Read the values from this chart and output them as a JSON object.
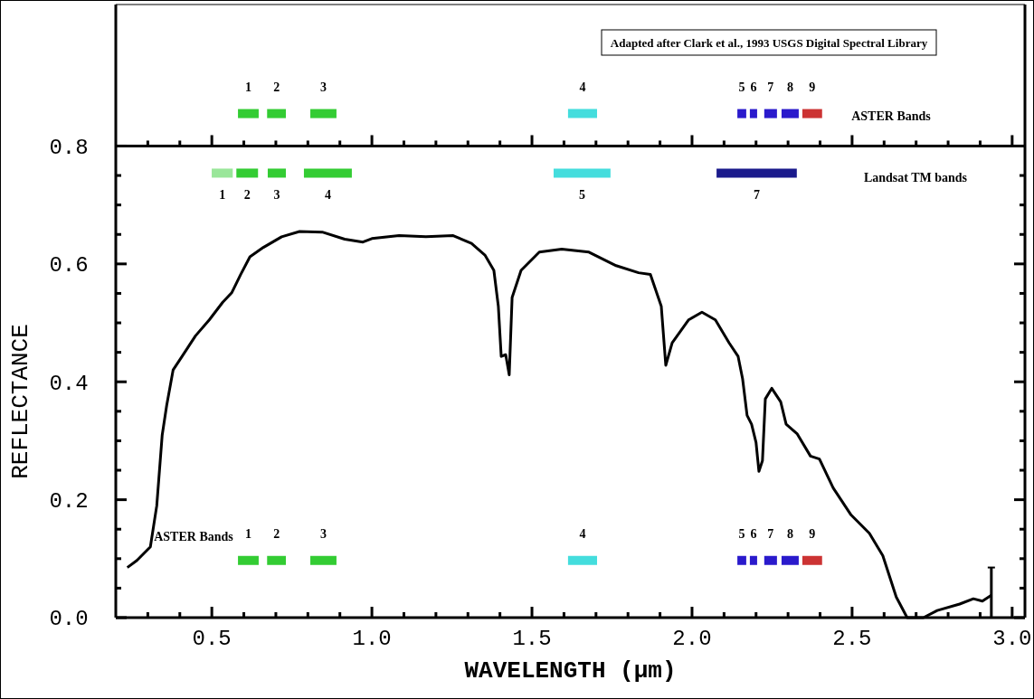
{
  "chart_data": {
    "type": "line",
    "xlabel": "WAVELENGTH (μm)",
    "ylabel": "REFLECTANCE",
    "xlim": [
      0.2,
      3.04
    ],
    "ylim": [
      0,
      1.04
    ],
    "xticks": [
      {
        "value": 0.3,
        "label": null
      },
      {
        "value": 0.4,
        "label": null
      },
      {
        "value": 0.5,
        "label": "0.5"
      },
      {
        "value": 0.6,
        "label": null
      },
      {
        "value": 0.7,
        "label": null
      },
      {
        "value": 0.8,
        "label": null
      },
      {
        "value": 0.9,
        "label": null
      },
      {
        "value": 1.0,
        "label": "1.0"
      },
      {
        "value": 1.1,
        "label": null
      },
      {
        "value": 1.2,
        "label": null
      },
      {
        "value": 1.3,
        "label": null
      },
      {
        "value": 1.4,
        "label": null
      },
      {
        "value": 1.5,
        "label": "1.5"
      },
      {
        "value": 1.6,
        "label": null
      },
      {
        "value": 1.7,
        "label": null
      },
      {
        "value": 1.8,
        "label": null
      },
      {
        "value": 1.9,
        "label": null
      },
      {
        "value": 2.0,
        "label": "2.0"
      },
      {
        "value": 2.1,
        "label": null
      },
      {
        "value": 2.2,
        "label": null
      },
      {
        "value": 2.3,
        "label": null
      },
      {
        "value": 2.4,
        "label": null
      },
      {
        "value": 2.5,
        "label": "2.5"
      },
      {
        "value": 2.6,
        "label": null
      },
      {
        "value": 2.7,
        "label": null
      },
      {
        "value": 2.8,
        "label": null
      },
      {
        "value": 2.9,
        "label": null
      },
      {
        "value": 3.0,
        "label": "3.0"
      }
    ],
    "yticks": [
      {
        "value": 0,
        "label": "0.0"
      },
      {
        "value": 0.05,
        "label": null
      },
      {
        "value": 0.1,
        "label": null
      },
      {
        "value": 0.15,
        "label": null
      },
      {
        "value": 0.2,
        "label": "0.2"
      },
      {
        "value": 0.25,
        "label": null
      },
      {
        "value": 0.3,
        "label": null
      },
      {
        "value": 0.35,
        "label": null
      },
      {
        "value": 0.4,
        "label": "0.4"
      },
      {
        "value": 0.45,
        "label": null
      },
      {
        "value": 0.5,
        "label": null
      },
      {
        "value": 0.55,
        "label": null
      },
      {
        "value": 0.6,
        "label": "0.6"
      },
      {
        "value": 0.65,
        "label": null
      },
      {
        "value": 0.7,
        "label": null
      },
      {
        "value": 0.75,
        "label": null
      },
      {
        "value": 0.8,
        "label": "0.8"
      }
    ],
    "grid": false,
    "marker": "none",
    "line_style": "solid",
    "ref_lines": [
      {
        "axis": "y",
        "value": 0.8,
        "label": null,
        "color": "#000000"
      }
    ],
    "series": [
      {
        "color": "#000000",
        "x": [
          0.236,
          0.266,
          0.308,
          0.328,
          0.345,
          0.359,
          0.379,
          0.407,
          0.449,
          0.492,
          0.534,
          0.562,
          0.59,
          0.619,
          0.661,
          0.718,
          0.774,
          0.845,
          0.915,
          0.972,
          1.0,
          1.085,
          1.169,
          1.254,
          1.311,
          1.353,
          1.381,
          1.395,
          1.404,
          1.418,
          1.429,
          1.438,
          1.466,
          1.523,
          1.593,
          1.678,
          1.763,
          1.833,
          1.87,
          1.904,
          1.918,
          1.938,
          1.989,
          2.031,
          2.073,
          2.116,
          2.144,
          2.158,
          2.172,
          2.186,
          2.2,
          2.209,
          2.22,
          2.229,
          2.249,
          2.277,
          2.294,
          2.328,
          2.37,
          2.398,
          2.441,
          2.497,
          2.554,
          2.596,
          2.638,
          2.672,
          2.723,
          2.766,
          2.836,
          2.879,
          2.907,
          2.935
        ],
        "values": [
          0.085,
          0.097,
          0.12,
          0.19,
          0.31,
          0.36,
          0.42,
          0.443,
          0.478,
          0.505,
          0.535,
          0.551,
          0.582,
          0.612,
          0.628,
          0.646,
          0.655,
          0.654,
          0.642,
          0.637,
          0.643,
          0.648,
          0.646,
          0.648,
          0.635,
          0.615,
          0.589,
          0.528,
          0.443,
          0.446,
          0.412,
          0.543,
          0.589,
          0.62,
          0.625,
          0.62,
          0.597,
          0.585,
          0.582,
          0.528,
          0.428,
          0.466,
          0.505,
          0.518,
          0.505,
          0.466,
          0.443,
          0.405,
          0.343,
          0.328,
          0.297,
          0.248,
          0.266,
          0.371,
          0.389,
          0.366,
          0.328,
          0.312,
          0.274,
          0.269,
          0.22,
          0.174,
          0.143,
          0.105,
          0.035,
          0.0,
          0.0,
          0.012,
          0.023,
          0.032,
          0.028,
          0.038
        ],
        "errors": [
          null,
          null,
          null,
          null,
          null,
          null,
          null,
          null,
          null,
          null,
          null,
          null,
          null,
          null,
          null,
          null,
          null,
          null,
          null,
          null,
          null,
          null,
          null,
          null,
          null,
          null,
          null,
          null,
          null,
          null,
          null,
          null,
          null,
          null,
          null,
          null,
          null,
          null,
          null,
          null,
          null,
          null,
          null,
          null,
          null,
          null,
          null,
          null,
          null,
          null,
          null,
          null,
          null,
          null,
          null,
          null,
          null,
          null,
          null,
          null,
          null,
          null,
          null,
          null,
          null,
          null,
          null,
          null,
          null,
          null,
          null,
          [
            0.0,
            0.085
          ]
        ]
      },
      {
        "name": "1",
        "color": "#33cc33",
        "x": [
          0.576,
          0.652
        ],
        "values": [
          0.855,
          0.855
        ]
      },
      {
        "name": "2",
        "color": "#33cc33",
        "x": [
          0.667,
          0.737
        ],
        "values": [
          0.855,
          0.855
        ]
      },
      {
        "name": "3",
        "color": "#33cc33",
        "x": [
          0.802,
          0.895
        ],
        "values": [
          0.855,
          0.855
        ]
      },
      {
        "name": "4",
        "color": "#44dddd",
        "x": [
          1.607,
          1.709
        ],
        "values": [
          0.855,
          0.855
        ]
      },
      {
        "name": "5",
        "color": "#2a1acc",
        "x": [
          2.136,
          2.175
        ],
        "values": [
          0.855,
          0.855
        ]
      },
      {
        "name": "6",
        "color": "#2a1acc",
        "x": [
          2.175,
          2.209
        ],
        "values": [
          0.855,
          0.855
        ]
      },
      {
        "name": "7",
        "color": "#2a1acc",
        "x": [
          2.22,
          2.271
        ],
        "values": [
          0.855,
          0.855
        ]
      },
      {
        "name": "8",
        "color": "#2a1acc",
        "x": [
          2.274,
          2.339
        ],
        "values": [
          0.855,
          0.855
        ]
      },
      {
        "name": "9",
        "color": "#cc3333",
        "x": [
          2.339,
          2.412
        ],
        "values": [
          0.855,
          0.855
        ]
      },
      {
        "name": "1",
        "color": "#99e699",
        "x": [
          0.494,
          0.571
        ],
        "values": [
          0.754,
          0.754
        ]
      },
      {
        "name": "2",
        "color": "#33cc33",
        "x": [
          0.571,
          0.65
        ],
        "values": [
          0.754,
          0.754
        ]
      },
      {
        "name": "3",
        "color": "#33cc33",
        "x": [
          0.669,
          0.737
        ],
        "values": [
          0.754,
          0.754
        ]
      },
      {
        "name": "4",
        "color": "#33cc33",
        "x": [
          0.782,
          0.943
        ],
        "values": [
          0.754,
          0.754
        ]
      },
      {
        "name": "5",
        "color": "#44dddd",
        "x": [
          1.562,
          1.751
        ],
        "values": [
          0.754,
          0.754
        ]
      },
      {
        "name": "7",
        "color": "#1a1a8c",
        "x": [
          2.071,
          2.333
        ],
        "values": [
          0.754,
          0.754
        ]
      },
      {
        "name": "1",
        "color": "#33cc33",
        "x": [
          0.576,
          0.652
        ],
        "values": [
          0.097,
          0.097
        ]
      },
      {
        "name": "2",
        "color": "#33cc33",
        "x": [
          0.667,
          0.737
        ],
        "values": [
          0.097,
          0.097
        ]
      },
      {
        "name": "3",
        "color": "#33cc33",
        "x": [
          0.802,
          0.895
        ],
        "values": [
          0.097,
          0.097
        ]
      },
      {
        "name": "4",
        "color": "#44dddd",
        "x": [
          1.607,
          1.709
        ],
        "values": [
          0.097,
          0.097
        ]
      },
      {
        "name": "5",
        "color": "#2a1acc",
        "x": [
          2.136,
          2.175
        ],
        "values": [
          0.097,
          0.097
        ]
      },
      {
        "name": "6",
        "color": "#2a1acc",
        "x": [
          2.175,
          2.209
        ],
        "values": [
          0.097,
          0.097
        ]
      },
      {
        "name": "7",
        "color": "#2a1acc",
        "x": [
          2.22,
          2.271
        ],
        "values": [
          0.097,
          0.097
        ]
      },
      {
        "name": "8",
        "color": "#2a1acc",
        "x": [
          2.274,
          2.339
        ],
        "values": [
          0.097,
          0.097
        ]
      },
      {
        "name": "9",
        "color": "#cc3333",
        "x": [
          2.339,
          2.412
        ],
        "values": [
          0.097,
          0.097
        ]
      }
    ],
    "annotations": [
      "Adapted after Clark et al., 1993 USGS Digital Spectral Library",
      "ASTER Bands",
      "Landsat TM bands",
      "ASTER Bands"
    ]
  }
}
